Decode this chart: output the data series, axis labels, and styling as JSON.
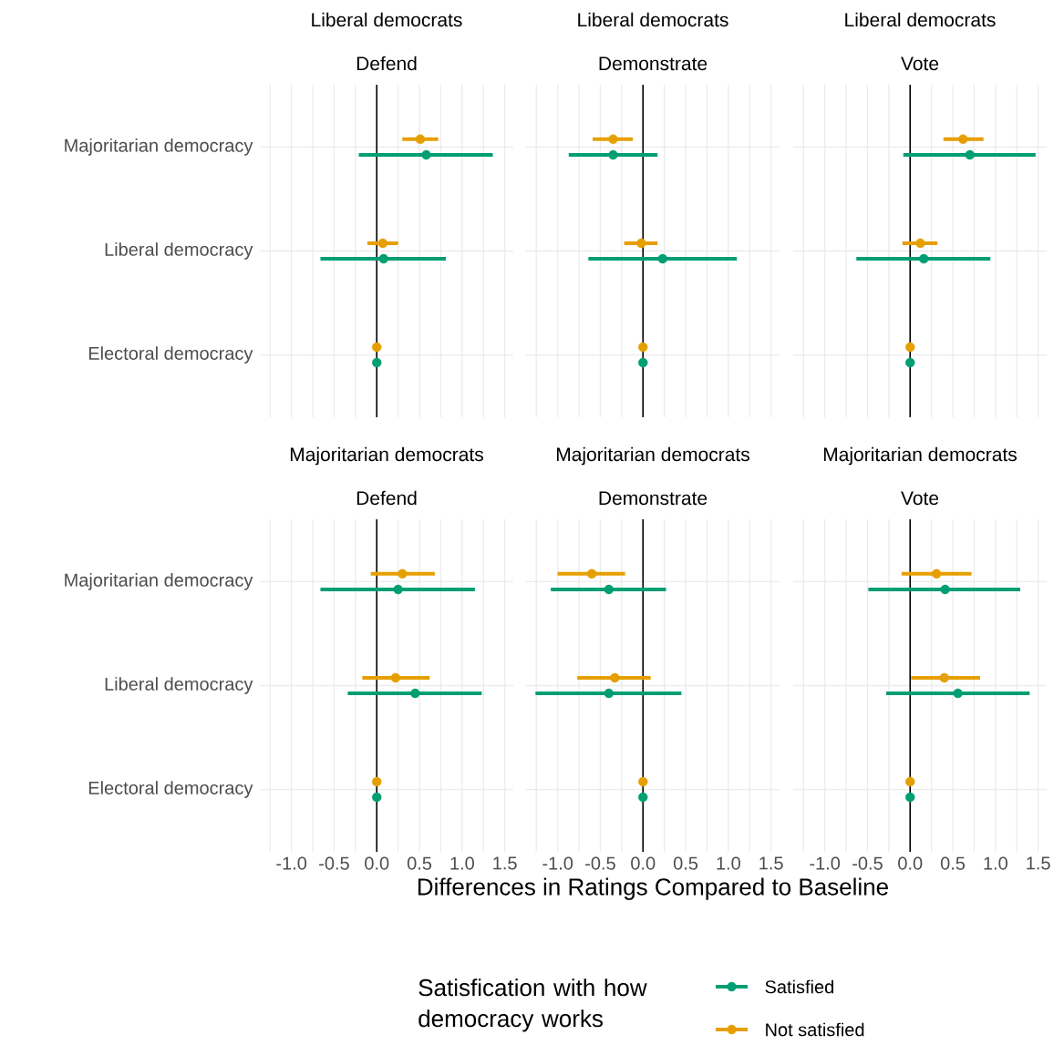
{
  "chart_data": [
    {
      "type": "scatter",
      "orientation": "horizontal",
      "title": "Liberal democrats",
      "subtitle": "Defend",
      "categories": [
        "Majoritarian democracy",
        "Liberal democracy",
        "Electoral democracy"
      ],
      "xlim": [
        -1.37,
        1.6
      ],
      "xticks": [
        {
          "value": -1.25,
          "label": null
        },
        {
          "value": -1,
          "label": null
        },
        {
          "value": -0.75,
          "label": null
        },
        {
          "value": -0.5,
          "label": null
        },
        {
          "value": -0.25,
          "label": null
        },
        {
          "value": 0,
          "label": null
        },
        {
          "value": 0.25,
          "label": null
        },
        {
          "value": 0.5,
          "label": null
        },
        {
          "value": 0.75,
          "label": null
        },
        {
          "value": 1,
          "label": null
        },
        {
          "value": 1.25,
          "label": null
        },
        {
          "value": 1.5,
          "label": null
        }
      ],
      "grid": true,
      "marker": "circle",
      "tick_labels": "y",
      "ref_lines": [
        {
          "axis": "x",
          "value": 0,
          "color": "#000000"
        }
      ],
      "series": [
        {
          "color": "#009e73",
          "values": [
            0.58,
            0.08,
            0
          ],
          "errors": [
            [
              -0.21,
              1.36
            ],
            [
              -0.66,
              0.81
            ],
            null
          ]
        },
        {
          "color": "#e69f00",
          "values": [
            0.51,
            0.07,
            0
          ],
          "errors": [
            [
              0.3,
              0.72
            ],
            [
              -0.11,
              0.25
            ],
            null
          ]
        }
      ]
    },
    {
      "type": "scatter",
      "orientation": "horizontal",
      "title": "Liberal democrats",
      "subtitle": "Demonstrate",
      "categories": [
        null,
        null,
        null
      ],
      "xlim": [
        -1.37,
        1.6
      ],
      "xticks": [
        {
          "value": -1.25,
          "label": null
        },
        {
          "value": -1,
          "label": null
        },
        {
          "value": -0.75,
          "label": null
        },
        {
          "value": -0.5,
          "label": null
        },
        {
          "value": -0.25,
          "label": null
        },
        {
          "value": 0,
          "label": null
        },
        {
          "value": 0.25,
          "label": null
        },
        {
          "value": 0.5,
          "label": null
        },
        {
          "value": 0.75,
          "label": null
        },
        {
          "value": 1,
          "label": null
        },
        {
          "value": 1.25,
          "label": null
        },
        {
          "value": 1.5,
          "label": null
        }
      ],
      "grid": true,
      "marker": "circle",
      "tick_labels": false,
      "ref_lines": [
        {
          "axis": "x",
          "value": 0,
          "color": "#000000"
        }
      ],
      "series": [
        {
          "color": "#009e73",
          "values": [
            -0.35,
            0.23,
            0
          ],
          "errors": [
            [
              -0.87,
              0.17
            ],
            [
              -0.64,
              1.1
            ],
            null
          ]
        },
        {
          "color": "#e69f00",
          "values": [
            -0.35,
            -0.02,
            0
          ],
          "errors": [
            [
              -0.59,
              -0.12
            ],
            [
              -0.22,
              0.17
            ],
            null
          ]
        }
      ]
    },
    {
      "type": "scatter",
      "orientation": "horizontal",
      "title": "Liberal democrats",
      "subtitle": "Vote",
      "categories": [
        null,
        null,
        null
      ],
      "xlim": [
        -1.37,
        1.6
      ],
      "xticks": [
        {
          "value": -1.25,
          "label": null
        },
        {
          "value": -1,
          "label": null
        },
        {
          "value": -0.75,
          "label": null
        },
        {
          "value": -0.5,
          "label": null
        },
        {
          "value": -0.25,
          "label": null
        },
        {
          "value": 0,
          "label": null
        },
        {
          "value": 0.25,
          "label": null
        },
        {
          "value": 0.5,
          "label": null
        },
        {
          "value": 0.75,
          "label": null
        },
        {
          "value": 1,
          "label": null
        },
        {
          "value": 1.25,
          "label": null
        },
        {
          "value": 1.5,
          "label": null
        }
      ],
      "grid": true,
      "marker": "circle",
      "tick_labels": false,
      "ref_lines": [
        {
          "axis": "x",
          "value": 0,
          "color": "#000000"
        }
      ],
      "series": [
        {
          "color": "#009e73",
          "values": [
            0.7,
            0.16,
            0
          ],
          "errors": [
            [
              -0.08,
              1.47
            ],
            [
              -0.63,
              0.94
            ],
            null
          ]
        },
        {
          "color": "#e69f00",
          "values": [
            0.62,
            0.12,
            0
          ],
          "errors": [
            [
              0.39,
              0.86
            ],
            [
              -0.09,
              0.32
            ],
            null
          ]
        }
      ]
    },
    {
      "type": "scatter",
      "orientation": "horizontal",
      "title": "Majoritarian democrats",
      "subtitle": "Defend",
      "categories": [
        "Majoritarian democracy",
        "Liberal democracy",
        "Electoral democracy"
      ],
      "xlim": [
        -1.37,
        1.6
      ],
      "xticks": [
        {
          "value": -1.25,
          "label": null
        },
        {
          "value": -1,
          "label": "-1.0"
        },
        {
          "value": -0.75,
          "label": null
        },
        {
          "value": -0.5,
          "label": "-0.5"
        },
        {
          "value": -0.25,
          "label": null
        },
        {
          "value": 0,
          "label": "0.0"
        },
        {
          "value": 0.25,
          "label": null
        },
        {
          "value": 0.5,
          "label": "0.5"
        },
        {
          "value": 0.75,
          "label": null
        },
        {
          "value": 1,
          "label": "1.0"
        },
        {
          "value": 1.25,
          "label": null
        },
        {
          "value": 1.5,
          "label": "1.5"
        }
      ],
      "grid": true,
      "marker": "circle",
      "ref_lines": [
        {
          "axis": "x",
          "value": 0,
          "color": "#000000"
        }
      ],
      "series": [
        {
          "color": "#009e73",
          "values": [
            0.25,
            0.45,
            0
          ],
          "errors": [
            [
              -0.66,
              1.15
            ],
            [
              -0.34,
              1.23
            ],
            null
          ]
        },
        {
          "color": "#e69f00",
          "values": [
            0.3,
            0.22,
            0
          ],
          "errors": [
            [
              -0.07,
              0.68
            ],
            [
              -0.17,
              0.62
            ],
            null
          ]
        }
      ]
    },
    {
      "type": "scatter",
      "orientation": "horizontal",
      "title": "Majoritarian democrats",
      "subtitle": "Demonstrate",
      "xlabel": "Differences in Ratings Compared to Baseline",
      "legend_title": "Satisfication with how democracy works",
      "legend": "bottom",
      "categories": [
        null,
        null,
        null
      ],
      "xlim": [
        -1.37,
        1.6
      ],
      "xticks": [
        {
          "value": -1.25,
          "label": null
        },
        {
          "value": -1,
          "label": "-1.0"
        },
        {
          "value": -0.75,
          "label": null
        },
        {
          "value": -0.5,
          "label": "-0.5"
        },
        {
          "value": -0.25,
          "label": null
        },
        {
          "value": 0,
          "label": "0.0"
        },
        {
          "value": 0.25,
          "label": null
        },
        {
          "value": 0.5,
          "label": "0.5"
        },
        {
          "value": 0.75,
          "label": null
        },
        {
          "value": 1,
          "label": "1.0"
        },
        {
          "value": 1.25,
          "label": null
        },
        {
          "value": 1.5,
          "label": "1.5"
        }
      ],
      "grid": true,
      "marker": "circle",
      "tick_labels": "x",
      "ref_lines": [
        {
          "axis": "x",
          "value": 0,
          "color": "#000000"
        }
      ],
      "series": [
        {
          "name": "Satisfied",
          "color": "#009e73",
          "values": [
            -0.4,
            -0.4,
            0
          ],
          "errors": [
            [
              -1.08,
              0.27
            ],
            [
              -1.26,
              0.45
            ],
            null
          ]
        },
        {
          "name": "Not satisfied",
          "color": "#e69f00",
          "values": [
            -0.6,
            -0.33,
            0
          ],
          "errors": [
            [
              -1.0,
              -0.21
            ],
            [
              -0.77,
              0.09
            ],
            null
          ]
        }
      ]
    },
    {
      "type": "scatter",
      "orientation": "horizontal",
      "title": "Majoritarian democrats",
      "subtitle": "Vote",
      "categories": [
        null,
        null,
        null
      ],
      "xlim": [
        -1.37,
        1.6
      ],
      "xticks": [
        {
          "value": -1.25,
          "label": null
        },
        {
          "value": -1,
          "label": "-1.0"
        },
        {
          "value": -0.75,
          "label": null
        },
        {
          "value": -0.5,
          "label": "-0.5"
        },
        {
          "value": -0.25,
          "label": null
        },
        {
          "value": 0,
          "label": "0.0"
        },
        {
          "value": 0.25,
          "label": null
        },
        {
          "value": 0.5,
          "label": "0.5"
        },
        {
          "value": 0.75,
          "label": null
        },
        {
          "value": 1,
          "label": "1.0"
        },
        {
          "value": 1.25,
          "label": null
        },
        {
          "value": 1.5,
          "label": "1.5"
        }
      ],
      "grid": true,
      "marker": "circle",
      "tick_labels": "x",
      "ref_lines": [
        {
          "axis": "x",
          "value": 0,
          "color": "#000000"
        }
      ],
      "series": [
        {
          "color": "#009e73",
          "values": [
            0.41,
            0.56,
            0
          ],
          "errors": [
            [
              -0.49,
              1.29
            ],
            [
              -0.28,
              1.4
            ],
            null
          ]
        },
        {
          "color": "#e69f00",
          "values": [
            0.31,
            0.4,
            0
          ],
          "errors": [
            [
              -0.1,
              0.72
            ],
            [
              0.01,
              0.82
            ],
            null
          ]
        }
      ]
    }
  ]
}
